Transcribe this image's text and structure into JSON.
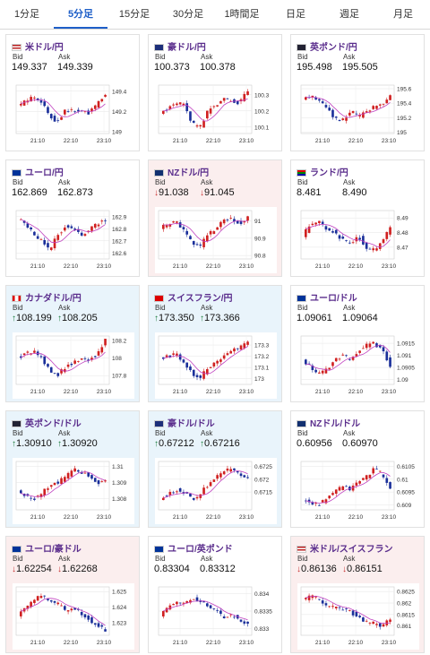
{
  "tabs": [
    {
      "label": "1分足",
      "active": false
    },
    {
      "label": "5分足",
      "active": true
    },
    {
      "label": "15分足",
      "active": false
    },
    {
      "label": "30分足",
      "active": false
    },
    {
      "label": "1時間足",
      "active": false
    },
    {
      "label": "日足",
      "active": false
    },
    {
      "label": "週足",
      "active": false
    },
    {
      "label": "月足",
      "active": false
    }
  ],
  "labels": {
    "bid": "Bid",
    "ask": "Ask"
  },
  "colors": {
    "accent": "#1e5fc8",
    "title": "#5a2d8c",
    "up_bg": "#e9f4fb",
    "down_bg": "#fbeeee",
    "candle_up": "#d02020",
    "candle_down": "#1a2f9a",
    "ma": "#c040c0"
  },
  "time_labels": [
    "21:10",
    "22:10",
    "23:10"
  ],
  "pairs": [
    {
      "name": "米ドル/円",
      "flag": "us",
      "state": "flat",
      "bid": "149.337",
      "ask": "149.339",
      "y_ticks": [
        "149.4",
        "149.2",
        "149"
      ],
      "ylim": [
        148.98,
        149.46
      ],
      "trend": [
        149.25,
        149.3,
        149.35,
        149.3,
        149.15,
        149.1,
        149.22,
        149.2,
        149.2,
        149.18,
        149.28,
        149.36
      ],
      "direction": "up"
    },
    {
      "name": "豪ドル/円",
      "flag": "au",
      "state": "flat",
      "bid": "100.373",
      "ask": "100.378",
      "y_ticks": [
        "100.3",
        "100.2",
        "100.1"
      ],
      "ylim": [
        100.06,
        100.36
      ],
      "trend": [
        100.18,
        100.22,
        100.25,
        100.24,
        100.12,
        100.1,
        100.2,
        100.24,
        100.27,
        100.26,
        100.25,
        100.33
      ],
      "direction": "up"
    },
    {
      "name": "英ポンド/円",
      "flag": "gb",
      "state": "flat",
      "bid": "195.498",
      "ask": "195.505",
      "y_ticks": [
        "195.6",
        "195.4",
        "195.2",
        "195"
      ],
      "ylim": [
        194.98,
        195.65
      ],
      "trend": [
        195.45,
        195.5,
        195.45,
        195.35,
        195.2,
        195.15,
        195.3,
        195.2,
        195.3,
        195.35,
        195.4,
        195.5
      ],
      "direction": "up"
    },
    {
      "name": "ユーロ/円",
      "flag": "eu",
      "state": "flat",
      "bid": "162.869",
      "ask": "162.873",
      "y_ticks": [
        "162.9",
        "162.8",
        "162.7",
        "162.6"
      ],
      "ylim": [
        162.55,
        162.95
      ],
      "trend": [
        162.88,
        162.85,
        162.75,
        162.7,
        162.62,
        162.75,
        162.82,
        162.8,
        162.74,
        162.8,
        162.84,
        162.87
      ],
      "direction": "up"
    },
    {
      "name": "NZドル/円",
      "flag": "nz",
      "state": "down",
      "bid_arrow": "↓",
      "ask_arrow": "↓",
      "bid": "91.038",
      "ask": "91.045",
      "y_ticks": [
        "91",
        "90.9",
        "90.8"
      ],
      "ylim": [
        90.78,
        91.06
      ],
      "trend": [
        90.96,
        90.98,
        91.0,
        90.95,
        90.88,
        90.85,
        90.92,
        90.96,
        91.0,
        91.02,
        90.98,
        91.02
      ],
      "direction": "down"
    },
    {
      "name": "ランド/円",
      "flag": "za",
      "state": "flat",
      "bid": "8.481",
      "ask": "8.490",
      "y_ticks": [
        "8.49",
        "8.48",
        "8.47"
      ],
      "ylim": [
        8.462,
        8.495
      ],
      "trend": [
        8.478,
        8.485,
        8.488,
        8.483,
        8.48,
        8.475,
        8.472,
        8.478,
        8.47,
        8.468,
        8.474,
        8.484
      ],
      "direction": "up"
    },
    {
      "name": "カナダドル/円",
      "flag": "ca",
      "state": "up",
      "bid_arrow": "↑",
      "ask_arrow": "↑",
      "bid": "108.199",
      "ask": "108.205",
      "y_ticks": [
        "108.2",
        "108",
        "107.8"
      ],
      "ylim": [
        107.7,
        108.25
      ],
      "trend": [
        108.0,
        108.05,
        108.08,
        108.0,
        107.85,
        107.8,
        107.9,
        107.95,
        108.0,
        107.98,
        108.05,
        108.2
      ],
      "direction": "up"
    },
    {
      "name": "スイスフラン/円",
      "flag": "ch",
      "state": "up",
      "bid_arrow": "↑",
      "ask_arrow": "↑",
      "bid": "173.350",
      "ask": "173.366",
      "y_ticks": [
        "173.3",
        "173.2",
        "173.1",
        "173"
      ],
      "ylim": [
        172.95,
        173.38
      ],
      "trend": [
        173.18,
        173.2,
        173.22,
        173.15,
        173.05,
        173.0,
        173.1,
        173.15,
        173.2,
        173.25,
        173.28,
        173.33
      ],
      "direction": "up"
    },
    {
      "name": "ユーロ/ドル",
      "flag": "eu",
      "state": "flat",
      "bid": "1.09061",
      "ask": "1.09064",
      "y_ticks": [
        "1.0915",
        "1.091",
        "1.0905",
        "1.09"
      ],
      "ylim": [
        1.0898,
        1.0918
      ],
      "trend": [
        1.0908,
        1.0905,
        1.0902,
        1.0904,
        1.0908,
        1.091,
        1.0908,
        1.0912,
        1.0914,
        1.0915,
        1.0912,
        1.0906
      ],
      "direction": "down"
    },
    {
      "name": "英ポンド/ドル",
      "flag": "gb",
      "state": "up",
      "bid_arrow": "↑",
      "ask_arrow": "↑",
      "bid": "1.30910",
      "ask": "1.30920",
      "y_ticks": [
        "1.31",
        "1.309",
        "1.308"
      ],
      "ylim": [
        1.3073,
        1.3103
      ],
      "trend": [
        1.3085,
        1.3082,
        1.308,
        1.3083,
        1.3088,
        1.309,
        1.3093,
        1.3098,
        1.3096,
        1.3094,
        1.309,
        1.3091
      ],
      "direction": "up"
    },
    {
      "name": "豪ドル/ドル",
      "flag": "au",
      "state": "up",
      "bid_arrow": "↑",
      "ask_arrow": "↑",
      "bid": "0.67212",
      "ask": "0.67216",
      "y_ticks": [
        "0.6725",
        "0.672",
        "0.6715"
      ],
      "ylim": [
        0.6708,
        0.6727
      ],
      "trend": [
        0.6712,
        0.6714,
        0.6716,
        0.6715,
        0.6712,
        0.6714,
        0.6718,
        0.6721,
        0.6723,
        0.6724,
        0.6722,
        0.6721
      ],
      "direction": "up"
    },
    {
      "name": "NZドル/ドル",
      "flag": "nz",
      "state": "flat",
      "bid": "0.60956",
      "ask": "0.60970",
      "y_ticks": [
        "0.6105",
        "0.61",
        "0.6095",
        "0.609"
      ],
      "ylim": [
        0.6088,
        0.6107
      ],
      "trend": [
        0.6092,
        0.6091,
        0.609,
        0.6092,
        0.6095,
        0.6097,
        0.6096,
        0.6099,
        0.6101,
        0.6104,
        0.6102,
        0.6096
      ],
      "direction": "down"
    },
    {
      "name": "ユーロ/豪ドル",
      "flag": "eu",
      "state": "down",
      "bid_arrow": "↓",
      "ask_arrow": "↓",
      "bid": "1.62254",
      "ask": "1.62268",
      "y_ticks": [
        "1.625",
        "1.624",
        "1.623"
      ],
      "ylim": [
        1.6222,
        1.6253
      ],
      "trend": [
        1.6235,
        1.624,
        1.6245,
        1.6248,
        1.6244,
        1.6242,
        1.6238,
        1.624,
        1.6236,
        1.6232,
        1.6228,
        1.6225
      ],
      "direction": "down"
    },
    {
      "name": "ユーロ/英ポンド",
      "flag": "eu",
      "state": "flat",
      "bid": "0.83304",
      "ask": "0.83312",
      "y_ticks": [
        "0.834",
        "0.8335",
        "0.833"
      ],
      "ylim": [
        0.8328,
        0.8342
      ],
      "trend": [
        0.8334,
        0.8336,
        0.8338,
        0.8337,
        0.8339,
        0.8338,
        0.8336,
        0.8335,
        0.8333,
        0.8334,
        0.8332,
        0.8331
      ],
      "direction": "down"
    },
    {
      "name": "米ドル/スイスフラン",
      "flag": "us",
      "state": "down",
      "bid_arrow": "↓",
      "ask_arrow": "↓",
      "bid": "0.86136",
      "ask": "0.86151",
      "y_ticks": [
        "0.8625",
        "0.862",
        "0.8615",
        "0.861"
      ],
      "ylim": [
        0.8606,
        0.8627
      ],
      "trend": [
        0.8621,
        0.8623,
        0.8622,
        0.8619,
        0.8618,
        0.8617,
        0.8616,
        0.8614,
        0.8612,
        0.8611,
        0.861,
        0.8613
      ],
      "direction": "down"
    }
  ]
}
